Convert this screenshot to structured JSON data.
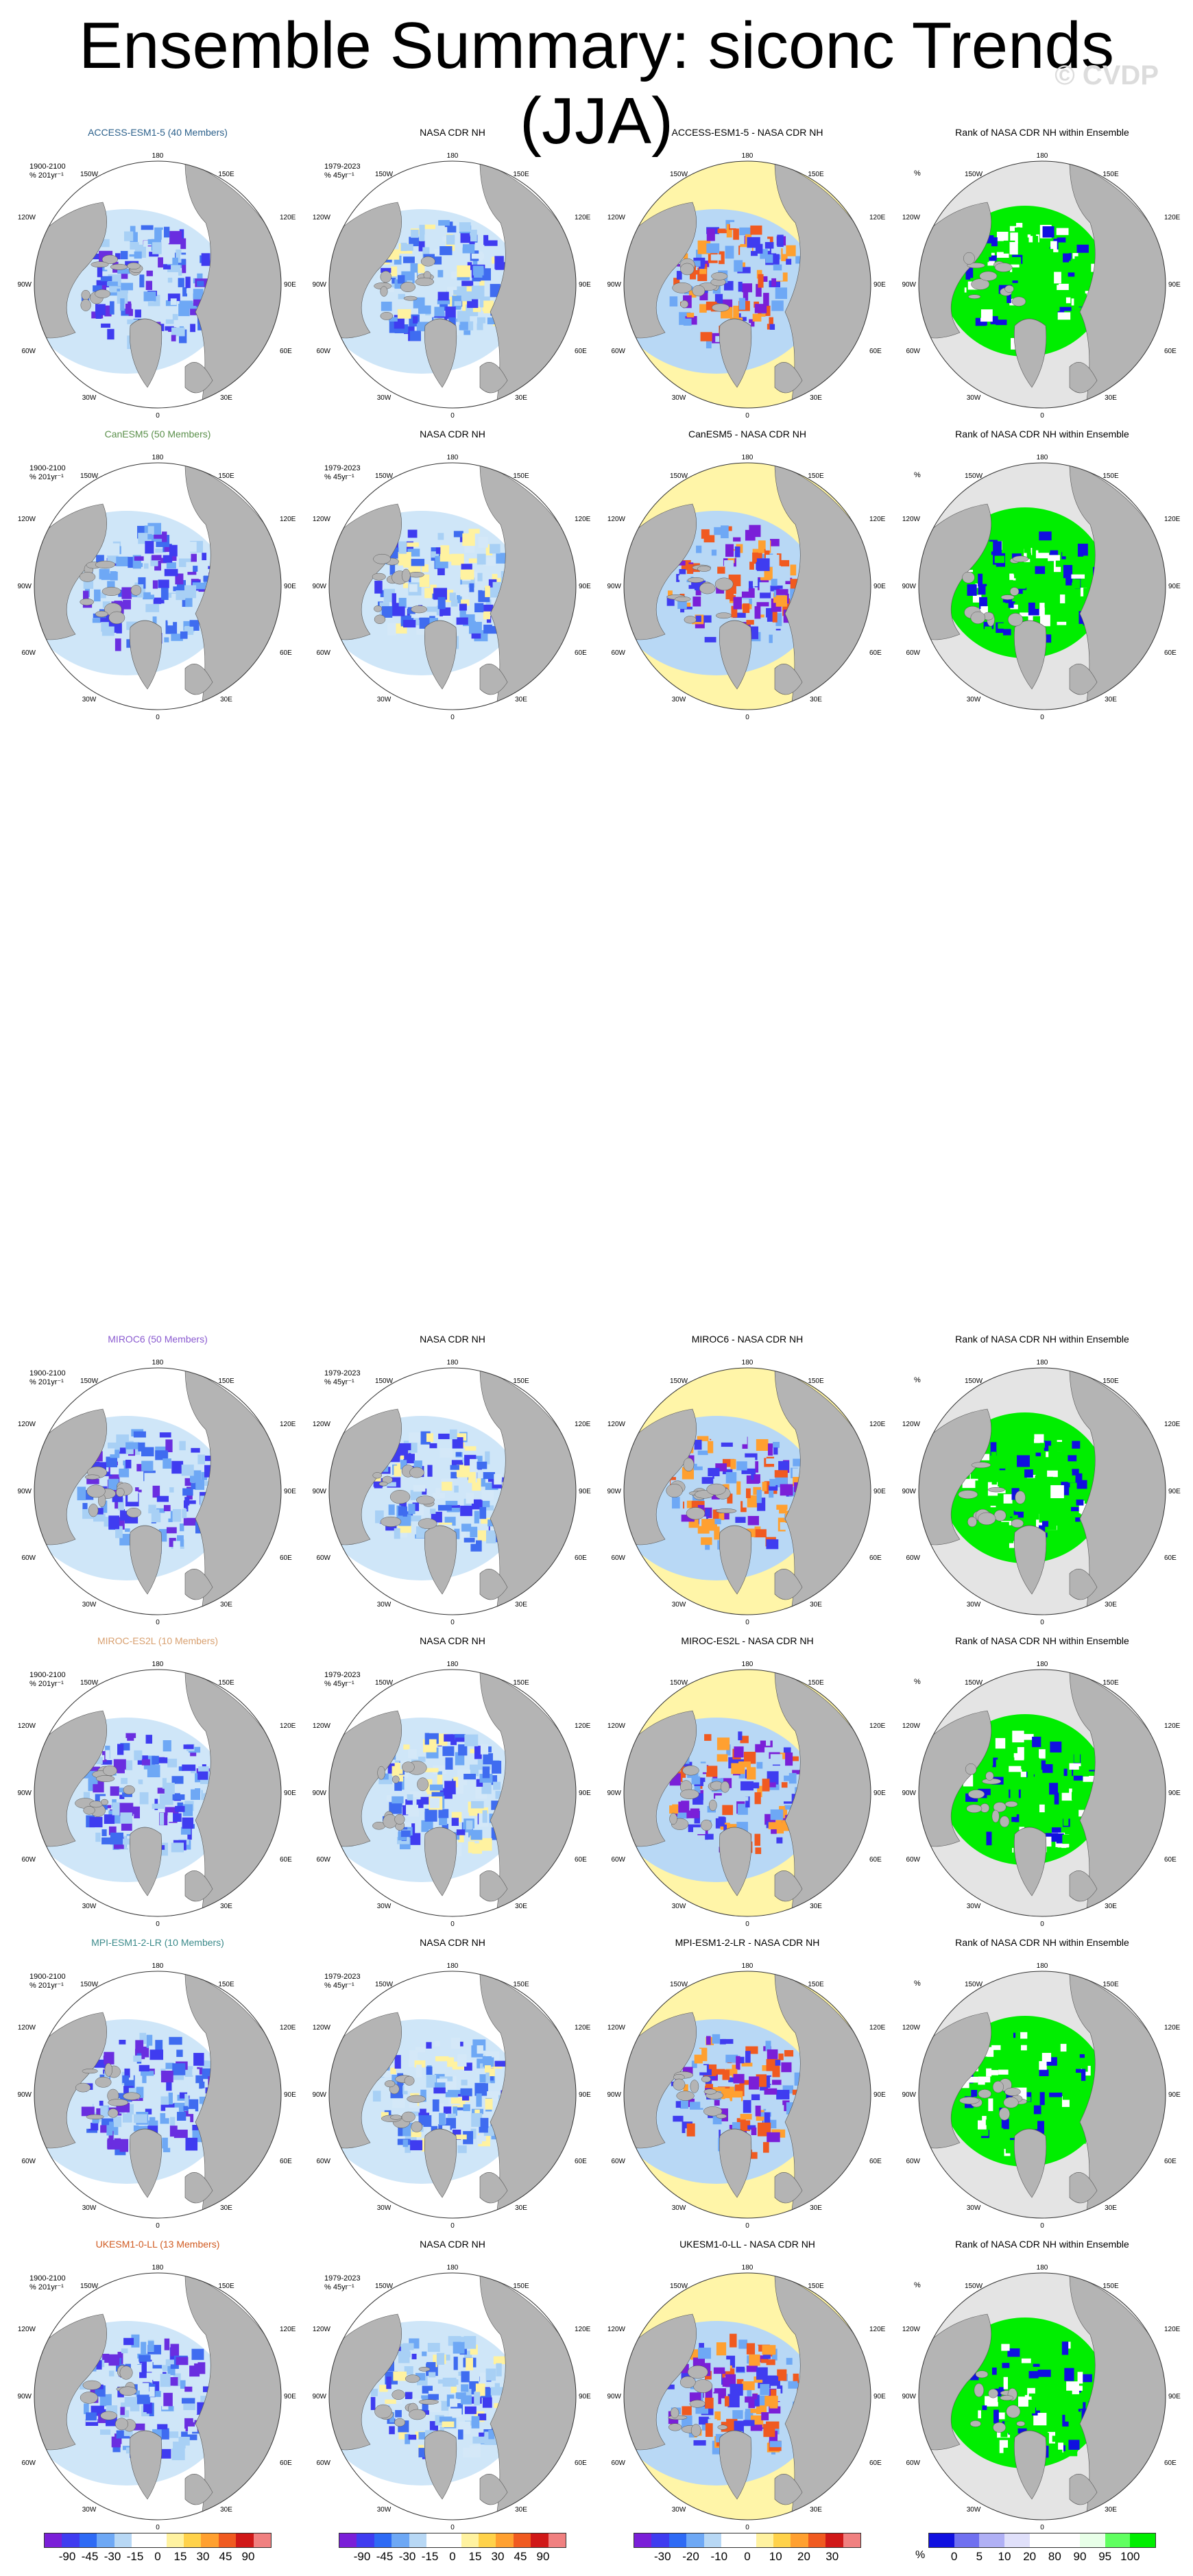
{
  "page": {
    "title": "Ensemble Summary: siconc Trends (JJA)",
    "watermark": "© CVDP"
  },
  "rows": [
    {
      "model_title": "ACCESS-ESM1-5 (40 Members)",
      "model_color": "#2a5f8a",
      "model_period": "1900-2100",
      "model_units": "% 201yr⁻¹",
      "obs_title": "NASA CDR NH",
      "obs_period": "1979-2023",
      "obs_units": "% 45yr⁻¹",
      "diff_title": "ACCESS-ESM1-5 - NASA CDR NH",
      "rank_title": "Rank of NASA CDR NH within Ensemble",
      "rank_units": "%"
    },
    {
      "model_title": "CanESM5 (50 Members)",
      "model_color": "#5a8f4a",
      "model_period": "1900-2100",
      "model_units": "% 201yr⁻¹",
      "obs_title": "NASA CDR NH",
      "obs_period": "1979-2023",
      "obs_units": "% 45yr⁻¹",
      "diff_title": "CanESM5 - NASA CDR NH",
      "rank_title": "Rank of NASA CDR NH within Ensemble",
      "rank_units": "%"
    },
    {
      "model_title": "MIROC6 (50 Members)",
      "model_color": "#8a5ad0",
      "model_period": "1900-2100",
      "model_units": "% 201yr⁻¹",
      "obs_title": "NASA CDR NH",
      "obs_period": "1979-2023",
      "obs_units": "% 45yr⁻¹",
      "diff_title": "MIROC6 - NASA CDR NH",
      "rank_title": "Rank of NASA CDR NH within Ensemble",
      "rank_units": "%"
    },
    {
      "model_title": "MIROC-ES2L (10 Members)",
      "model_color": "#d8a070",
      "model_period": "1900-2100",
      "model_units": "% 201yr⁻¹",
      "obs_title": "NASA CDR NH",
      "obs_period": "1979-2023",
      "obs_units": "% 45yr⁻¹",
      "diff_title": "MIROC-ES2L - NASA CDR NH",
      "rank_title": "Rank of NASA CDR NH within Ensemble",
      "rank_units": "%"
    },
    {
      "model_title": "MPI-ESM1-2-LR (10 Members)",
      "model_color": "#3a8a8a",
      "model_period": "1900-2100",
      "model_units": "% 201yr⁻¹",
      "obs_title": "NASA CDR NH",
      "obs_period": "1979-2023",
      "obs_units": "% 45yr⁻¹",
      "diff_title": "MPI-ESM1-2-LR - NASA CDR NH",
      "rank_title": "Rank of NASA CDR NH within Ensemble",
      "rank_units": "%"
    },
    {
      "model_title": "UKESM1-0-LL (13 Members)",
      "model_color": "#d05a20",
      "model_period": "1900-2100",
      "model_units": "% 201yr⁻¹",
      "obs_title": "NASA CDR NH",
      "obs_period": "1979-2023",
      "obs_units": "% 45yr⁻¹",
      "diff_title": "UKESM1-0-LL - NASA CDR NH",
      "rank_title": "Rank of NASA CDR NH within Ensemble",
      "rank_units": "%"
    }
  ],
  "lon_labels": {
    "top": "180",
    "bottom": "0",
    "nw": "150W",
    "ne": "150E",
    "wnw": "120W",
    "ene": "120E",
    "w": "90W",
    "e": "90E",
    "wsw": "60W",
    "esw": "60E",
    "sw": "30W",
    "se": "30E"
  },
  "colorbars": {
    "model": {
      "ticks": [
        "-90",
        "-45",
        "-30",
        "-15",
        "0",
        "15",
        "30",
        "45",
        "90"
      ],
      "colors": [
        "#7a1fd8",
        "#3f3cf0",
        "#2e6af5",
        "#6ea8f5",
        "#b8d8f5",
        "#ffffff",
        "#ffffff",
        "#fff2a0",
        "#ffd24a",
        "#ffa030",
        "#f05a20",
        "#d01818",
        "#f08080"
      ]
    },
    "obs": {
      "ticks": [
        "-90",
        "-45",
        "-30",
        "-15",
        "0",
        "15",
        "30",
        "45",
        "90"
      ],
      "colors": [
        "#7a1fd8",
        "#3f3cf0",
        "#2e6af5",
        "#6ea8f5",
        "#b8d8f5",
        "#ffffff",
        "#ffffff",
        "#fff2a0",
        "#ffd24a",
        "#ffa030",
        "#f05a20",
        "#d01818",
        "#f08080"
      ]
    },
    "diff": {
      "ticks": [
        "-30",
        "-20",
        "-10",
        "0",
        "10",
        "20",
        "30"
      ],
      "colors": [
        "#7a1fd8",
        "#3f3cf0",
        "#2e6af5",
        "#6ea8f5",
        "#b8d8f5",
        "#ffffff",
        "#ffffff",
        "#fff2a0",
        "#ffd24a",
        "#ffa030",
        "#f05a20",
        "#d01818",
        "#f08080"
      ]
    },
    "rank": {
      "ticks": [
        "0",
        "5",
        "10",
        "20",
        "80",
        "90",
        "95",
        "100"
      ],
      "colors": [
        "#1010e0",
        "#7070f0",
        "#b0b0f5",
        "#e0e0fa",
        "#ffffff",
        "#ffffff",
        "#e8ffe8",
        "#60ff60",
        "#00ee00"
      ]
    }
  }
}
